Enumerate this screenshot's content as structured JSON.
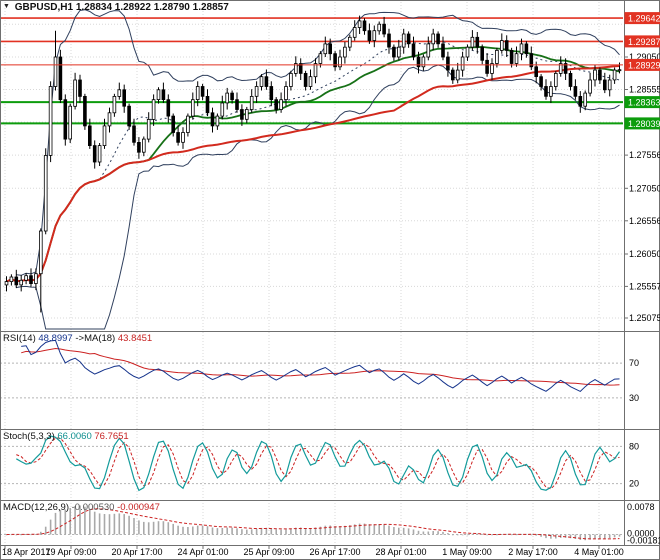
{
  "header": {
    "symbol": "GBPUSD,H1",
    "ohlc": "1.28834 1.28922 1.28790 1.28857"
  },
  "colors": {
    "up": "#ffffff",
    "down": "#000000",
    "candle_border": "#000000",
    "bollinger": "#30405e",
    "ma_red": "#d22a1e",
    "ma_green": "#177117",
    "resistance": "#e23222",
    "support": "#0c9c0c",
    "bid": "#e23222",
    "grid": "#d8d8d8",
    "panel_border": "#6f6f6f",
    "label_red_bg": "#e23222",
    "label_green_bg": "#0c9c0c",
    "rsi_line": "#16348c",
    "rsi_ma": "#cc2222",
    "stoch_k": "#139b9b",
    "stoch_d": "#cc2222",
    "macd_hist": "#a9a9a9",
    "macd_signal": "#cc2222",
    "level_dash": "#b5b5b5",
    "text": "#000000"
  },
  "main_chart": {
    "grid_prices": [
      1.2955,
      1.2905,
      1.28555,
      1.28059,
      1.27556,
      1.2705,
      1.26556,
      1.2605,
      1.25557,
      1.25075
    ],
    "axis_ticks": [
      "1.29050",
      "1.28555",
      "1.27556",
      "1.27050",
      "1.26556",
      "1.26050",
      "1.25557",
      "1.25075"
    ],
    "price_labels": [
      {
        "text": "1.29642",
        "type": "resistance"
      },
      {
        "text": "1.29287",
        "type": "resistance"
      },
      {
        "text": "1.28929",
        "type": "bid"
      },
      {
        "text": "1.28363",
        "type": "support"
      },
      {
        "text": "1.28039",
        "type": "support"
      }
    ]
  },
  "rsi": {
    "name": "RSI(14)",
    "value": "48.8997",
    "ma_name": "->MA(18)",
    "ma_value": "43.8451",
    "levels": [
      "70",
      "30"
    ]
  },
  "stoch": {
    "name": "Stoch(5,3,3)",
    "value_k": "66.0060",
    "value_d": "76.7651",
    "levels": [
      "80",
      "20"
    ]
  },
  "macd": {
    "name": "MACD(12,26,9)",
    "value_main": "-0.000530",
    "value_signal": "-0.000947",
    "axis": [
      "0.0078",
      "0.0000",
      "-0.001815"
    ]
  },
  "x_axis": [
    "18 Apr 2017",
    "19 Apr 09:00",
    "20 Apr 17:00",
    "24 Apr 01:00",
    "25 Apr 09:00",
    "26 Apr 17:00",
    "28 Apr 01:00",
    "1 May 09:00",
    "2 May 17:00",
    "4 May 01:00"
  ],
  "chart_data": {
    "type": "candlestick",
    "symbol": "GBPUSD",
    "timeframe": "H1",
    "first_open": 1.2558,
    "closes": [
      1.2563,
      1.257,
      1.2558,
      1.2565,
      1.2572,
      1.256,
      1.2575,
      1.264,
      1.2755,
      1.286,
      1.2905,
      1.284,
      1.278,
      1.283,
      1.287,
      1.2845,
      1.28,
      1.277,
      1.2745,
      1.277,
      1.28,
      1.282,
      1.2845,
      1.2855,
      1.283,
      1.28,
      1.2775,
      1.276,
      1.278,
      1.281,
      1.284,
      1.2855,
      1.284,
      1.2815,
      1.279,
      1.2775,
      1.279,
      1.2815,
      1.284,
      1.286,
      1.2845,
      1.282,
      1.28,
      1.2815,
      1.2835,
      1.285,
      1.284,
      1.2825,
      1.281,
      1.2825,
      1.2845,
      1.286,
      1.2875,
      1.286,
      1.284,
      1.2825,
      1.284,
      1.286,
      1.288,
      1.2895,
      1.288,
      1.286,
      1.2875,
      1.2895,
      1.291,
      1.2925,
      1.291,
      1.289,
      1.2905,
      1.292,
      1.2935,
      1.295,
      1.296,
      1.2945,
      1.293,
      1.2945,
      1.2955,
      1.294,
      1.292,
      1.2905,
      1.292,
      1.294,
      1.2925,
      1.2905,
      1.289,
      1.2905,
      1.2925,
      1.294,
      1.2925,
      1.2905,
      1.2885,
      1.287,
      1.2885,
      1.2905,
      1.292,
      1.2935,
      1.292,
      1.29,
      1.288,
      1.2895,
      1.2915,
      1.293,
      1.2915,
      1.2895,
      1.291,
      1.2925,
      1.291,
      1.289,
      1.2875,
      1.286,
      1.2845,
      1.286,
      1.288,
      1.2895,
      1.288,
      1.286,
      1.2845,
      1.283,
      1.285,
      1.287,
      1.2885,
      1.287,
      1.2855,
      1.287,
      1.2885,
      1.28857
    ],
    "wick_overrides": {
      "7": {
        "low": 1.2516
      },
      "10": {
        "high": 1.2945
      }
    },
    "levels": {
      "resistance": [
        1.29642,
        1.29287
      ],
      "support": [
        1.28363,
        1.28039
      ],
      "bid": 1.28929
    },
    "indicators": {
      "bollinger": {
        "period": 20,
        "dev": 2
      },
      "sma_red": 80,
      "sma_green": 30,
      "rsi": 14,
      "rsi_ma": 18,
      "stoch": [
        5,
        3,
        3
      ],
      "macd": [
        12,
        26,
        9
      ]
    }
  }
}
